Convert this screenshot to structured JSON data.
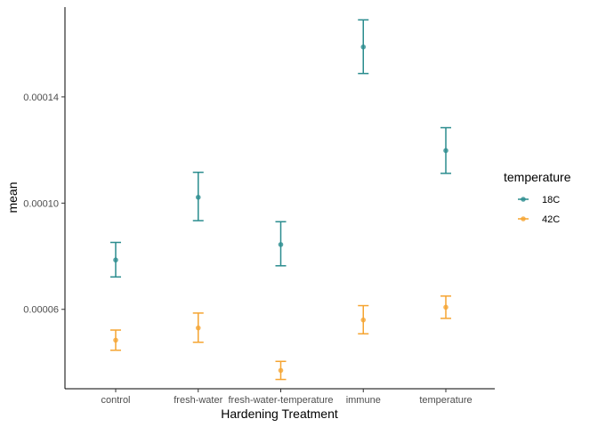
{
  "chart_data": {
    "type": "scatter",
    "title": "",
    "xlabel": "Hardening Treatment",
    "ylabel": "mean",
    "categories": [
      "control",
      "fresh-water",
      "fresh-water-temperature",
      "immune",
      "temperature"
    ],
    "yticks": [
      6e-05,
      0.0001,
      0.00014
    ],
    "ytick_labels": [
      "0.00006",
      "0.00010",
      "0.00014"
    ],
    "ylim": [
      3.01e-05,
      0.0001738
    ],
    "grid": false,
    "legend": {
      "title": "temperature",
      "position": "right"
    },
    "series": [
      {
        "name": "18C",
        "color": "#2a8c8e",
        "values": [
          7.86e-05,
          0.0001022,
          8.44e-05,
          0.0001588,
          0.0001198
        ],
        "err_low": [
          7.22e-05,
          9.34e-05,
          7.64e-05,
          0.0001488,
          0.0001112
        ],
        "err_high": [
          8.52e-05,
          0.0001116,
          9.3e-05,
          0.000169,
          0.0001284
        ]
      },
      {
        "name": "42C",
        "color": "#f5a431",
        "values": [
          4.84e-05,
          5.3e-05,
          3.7e-05,
          5.6e-05,
          6.08e-05
        ],
        "err_low": [
          4.46e-05,
          4.76e-05,
          3.36e-05,
          5.08e-05,
          5.66e-05
        ],
        "err_high": [
          5.22e-05,
          5.86e-05,
          4.04e-05,
          6.14e-05,
          6.5e-05
        ]
      }
    ]
  }
}
